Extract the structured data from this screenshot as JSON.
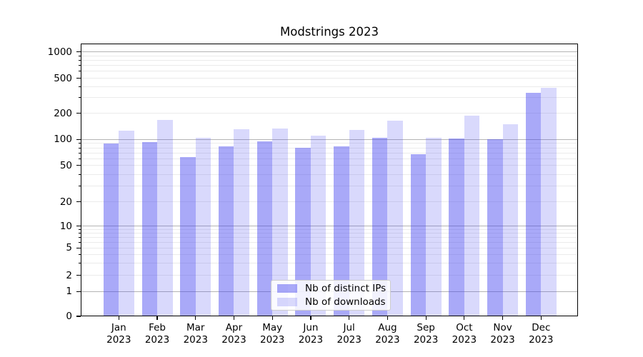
{
  "chart_data": {
    "type": "bar",
    "title": "Modstrings 2023",
    "categories": [
      "Jan",
      "Feb",
      "Mar",
      "Apr",
      "May",
      "Jun",
      "Jul",
      "Aug",
      "Sep",
      "Oct",
      "Nov",
      "Dec"
    ],
    "x_year": "2023",
    "series": [
      {
        "name": "Nb of distinct IPs",
        "color": "#4040F073",
        "values": [
          89,
          94,
          63,
          83,
          95,
          80,
          83,
          105,
          68,
          102,
          100,
          340
        ]
      },
      {
        "name": "Nb of downloads",
        "color": "#4040F033",
        "values": [
          127,
          168,
          104,
          132,
          134,
          110,
          129,
          165,
          104,
          187,
          149,
          390
        ]
      }
    ],
    "yscale": "symlog",
    "yticks": [
      0,
      1,
      2,
      5,
      10,
      20,
      50,
      100,
      200,
      500,
      1000
    ],
    "ylim": [
      0,
      1250
    ],
    "xlabel": "",
    "ylabel": "",
    "grid": "horizontal major and minor",
    "legend": {
      "position": "lower center",
      "labels": [
        "Nb of distinct IPs",
        "Nb of downloads"
      ]
    },
    "colors": {
      "bar_distinct_ips_on_white": "#a9a9f8",
      "bar_downloads_on_white": "#d9d9fb",
      "major_grid": "#b4b4b4",
      "minor_grid": "#ebebeb",
      "axis": "#000000",
      "legend_border": "#cccccc"
    }
  }
}
